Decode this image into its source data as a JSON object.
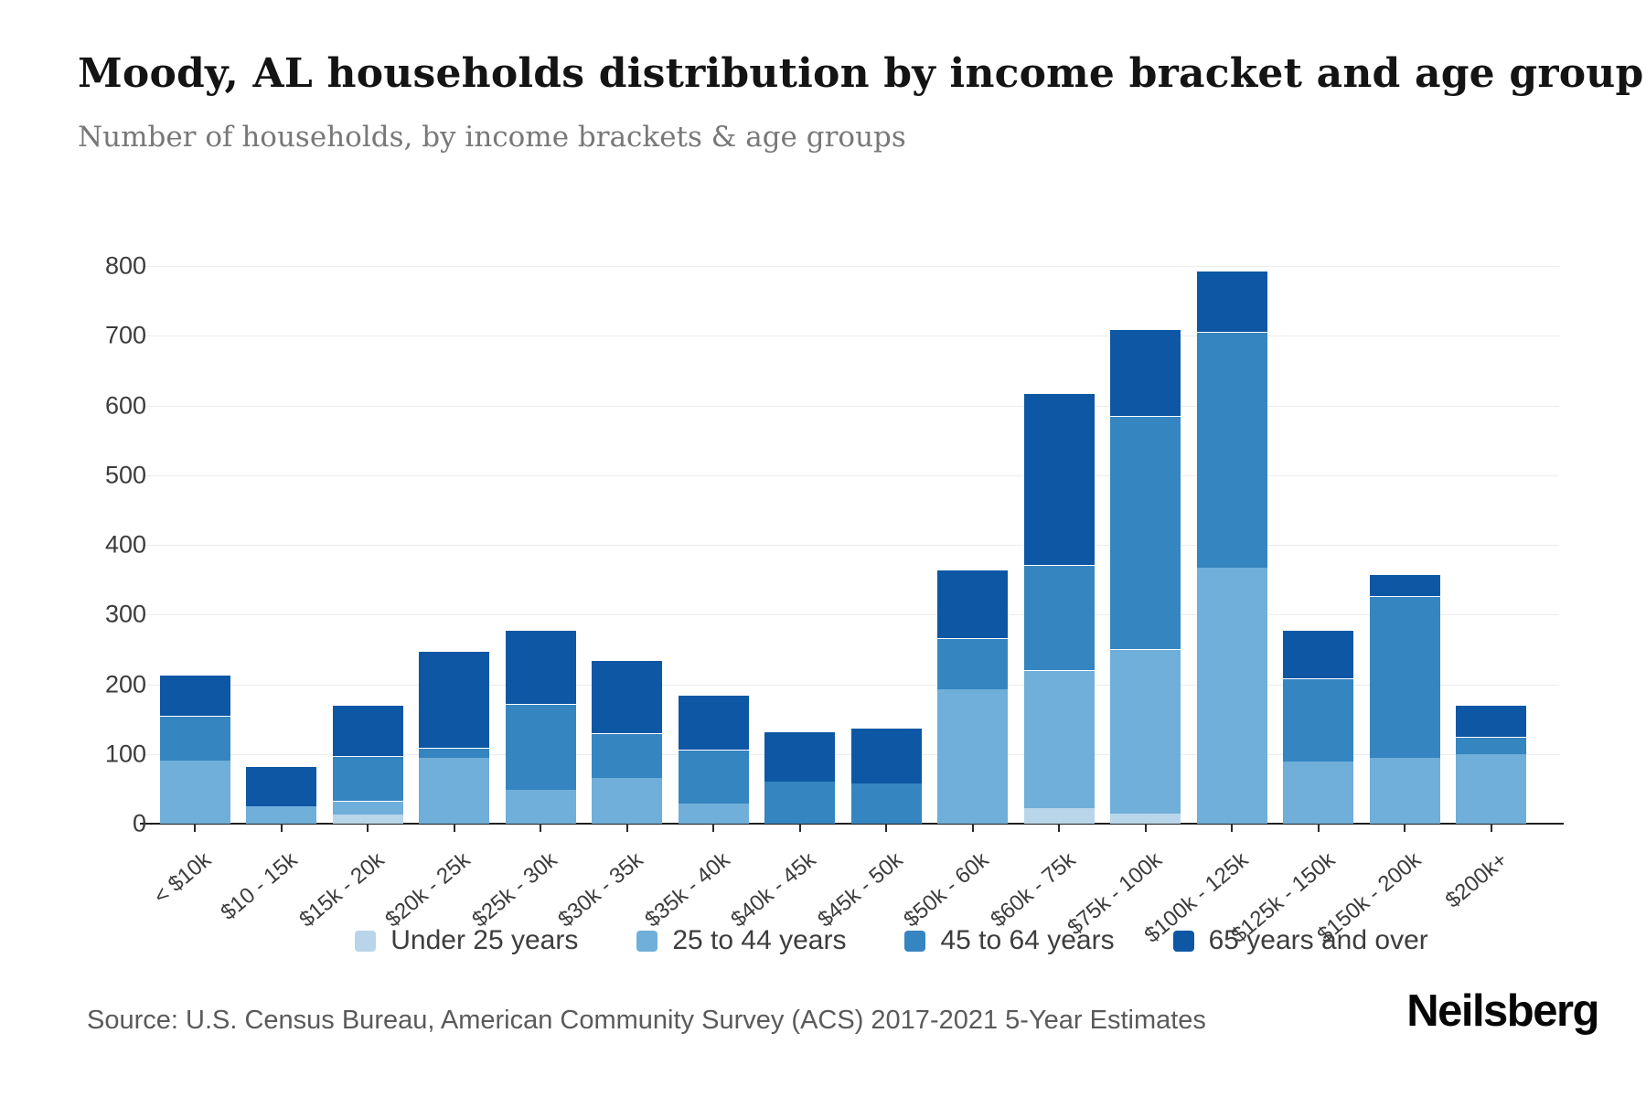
{
  "header": {
    "title": "Moody, AL households distribution by income bracket and age group",
    "subtitle": "Number of households, by income brackets & age groups"
  },
  "chart_data": {
    "type": "bar",
    "stacked": true,
    "title": "Moody, AL households distribution by income bracket and age group",
    "xlabel": "",
    "ylabel": "",
    "ylim": [
      0,
      800
    ],
    "yticks": [
      0,
      100,
      200,
      300,
      400,
      500,
      600,
      700,
      800
    ],
    "grid": "horizontal",
    "legend_position": "bottom",
    "categories": [
      "< $10k",
      "$10 - 15k",
      "$15k - 20k",
      "$20k - 25k",
      "$25k - 30k",
      "$30k - 35k",
      "$35k - 40k",
      "$40k - 45k",
      "$45k - 50k",
      "$50k - 60k",
      "$60k - 75k",
      "$75k - 100k",
      "$100k - 125k",
      "$125k - 150k",
      "$150k - 200k",
      "$200k+"
    ],
    "series": [
      {
        "name": "Under 25 years",
        "color": "#b9d5e9",
        "values": [
          0,
          0,
          13,
          0,
          0,
          0,
          0,
          0,
          0,
          0,
          22,
          15,
          0,
          0,
          0,
          0
        ]
      },
      {
        "name": "25 to 44 years",
        "color": "#6fafd9",
        "values": [
          90,
          25,
          20,
          94,
          48,
          66,
          29,
          0,
          0,
          193,
          198,
          235,
          367,
          89,
          94,
          100
        ]
      },
      {
        "name": "45 to 64 years",
        "color": "#3585c0",
        "values": [
          65,
          0,
          64,
          15,
          124,
          64,
          77,
          60,
          58,
          73,
          151,
          335,
          338,
          119,
          232,
          24
        ]
      },
      {
        "name": "65 years and over",
        "color": "#0d57a4",
        "values": [
          59,
          57,
          73,
          139,
          106,
          105,
          79,
          73,
          80,
          99,
          247,
          125,
          88,
          70,
          32,
          46
        ]
      }
    ]
  },
  "footer": {
    "source": "Source: U.S. Census Bureau, American Community Survey (ACS) 2017-2021 5-Year Estimates",
    "brand": "Neilsberg"
  }
}
